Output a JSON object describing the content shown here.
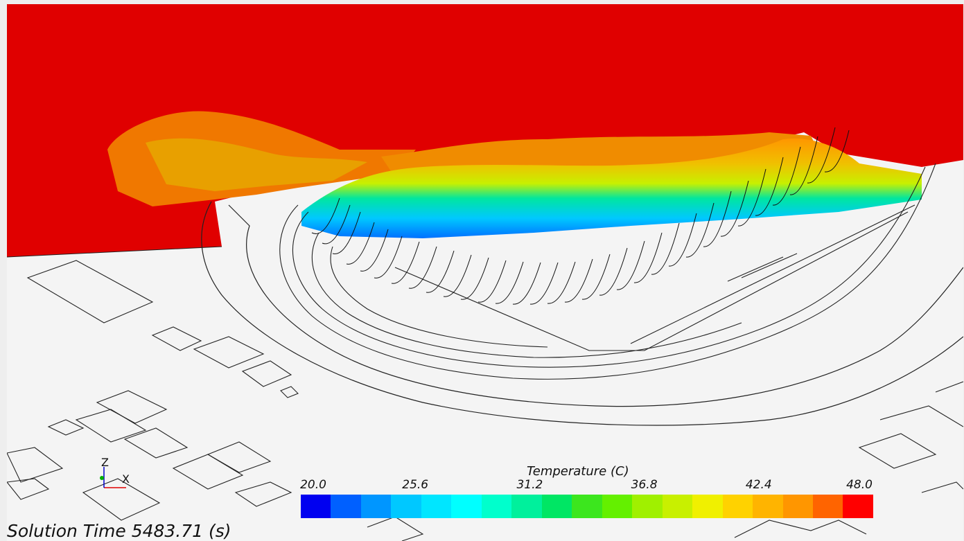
{
  "viewer": {
    "legend": {
      "title": "Temperature (C)",
      "ticks": [
        "20.0",
        "25.6",
        "31.2",
        "36.8",
        "42.4",
        "48.0"
      ],
      "colors": [
        "#0000f0",
        "#0060ff",
        "#0096ff",
        "#00c8ff",
        "#00e6ff",
        "#00ffff",
        "#00ffcc",
        "#00f09c",
        "#00e664",
        "#3ce61e",
        "#64f000",
        "#a0f000",
        "#c8f000",
        "#f0f000",
        "#ffd200",
        "#ffb400",
        "#ff9600",
        "#ff6400",
        "#ff0000"
      ]
    },
    "axes": {
      "z_label": "Z",
      "x_label": "X"
    },
    "solution_time": "Solution Time 5483.71 (s)"
  }
}
